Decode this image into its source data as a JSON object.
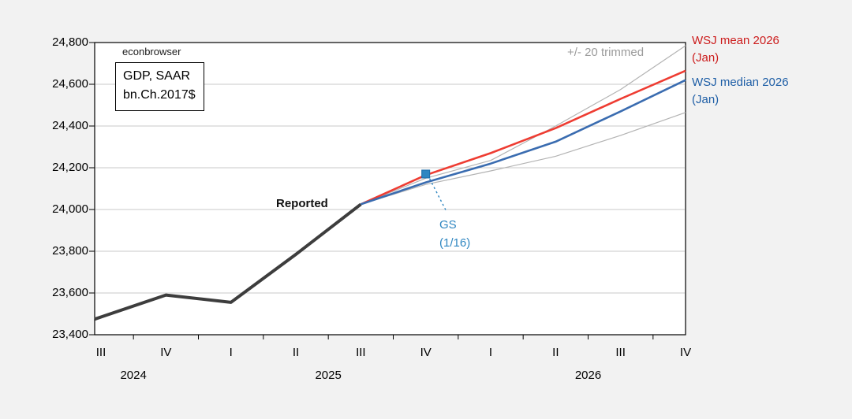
{
  "watermark": "econbrowser",
  "annotation_box": {
    "line1": "GDP, SAAR",
    "line2": "bn.Ch.2017$"
  },
  "labels": {
    "reported": "Reported",
    "trimmed": "+/- 20 trimmed",
    "wsj_mean_l1": "WSJ mean 2026",
    "wsj_mean_l2": "(Jan)",
    "wsj_median_l1": "WSJ median 2026",
    "wsj_median_l2": "(Jan)",
    "gs_l1": "GS",
    "gs_l2": "(1/16)"
  },
  "colors": {
    "page_background": "#f2f2f2",
    "plot_background": "#ffffff",
    "frame": "#000000",
    "gridline": "#cacaca",
    "reported_line": "#3d3d3d",
    "mean_line": "#ee3c32",
    "mean_label": "#cc1c1c",
    "median_line": "#3a6cb0",
    "median_label": "#1e5ea6",
    "trimmed_line": "#b3b3b3",
    "trimmed_label": "#9b9b9b",
    "gs_accent": "#2e86c1"
  },
  "chart_data": {
    "type": "line",
    "title": "",
    "xlabel": "",
    "ylabel": "GDP, SAAR bn.Ch.2017$",
    "grid": "horizontal",
    "ylim": [
      23400,
      24800
    ],
    "y_step": 200,
    "y_tick_labels": [
      "23,400",
      "23,600",
      "23,800",
      "24,000",
      "24,200",
      "24,400",
      "24,600",
      "24,800"
    ],
    "categories": [
      "2024 Q3",
      "2024 Q4",
      "2025 Q1",
      "2025 Q2",
      "2025 Q3",
      "2025 Q4",
      "2026 Q1",
      "2026 Q2",
      "2026 Q3",
      "2026 Q4"
    ],
    "x_tick_labels": [
      "III",
      "IV",
      "I",
      "II",
      "III",
      "IV",
      "I",
      "II",
      "III",
      "IV"
    ],
    "year_labels": [
      {
        "label": "2024",
        "pos": 0.5
      },
      {
        "label": "2025",
        "pos": 3.5
      },
      {
        "label": "2026",
        "pos": 7.5
      }
    ],
    "series": [
      {
        "key": "trimmed_upper",
        "name": "+20 trimmed",
        "color": "#b3b3b3",
        "width": 1.2,
        "values": [
          null,
          null,
          null,
          null,
          24025,
          24150,
          24235,
          24400,
          24575,
          24785
        ]
      },
      {
        "key": "trimmed_lower",
        "name": "-20 trimmed",
        "color": "#b3b3b3",
        "width": 1.2,
        "values": [
          null,
          null,
          null,
          null,
          24025,
          24120,
          24185,
          24255,
          24355,
          24465
        ]
      },
      {
        "key": "wsj_mean",
        "name": "WSJ mean 2026 (Jan)",
        "color": "#ee3c32",
        "width": 2.6,
        "values": [
          null,
          null,
          null,
          null,
          24025,
          24165,
          24270,
          24390,
          24530,
          24665
        ]
      },
      {
        "key": "wsj_median",
        "name": "WSJ median 2026 (Jan)",
        "color": "#3a6cb0",
        "width": 2.6,
        "values": [
          null,
          null,
          null,
          null,
          24025,
          24130,
          24220,
          24325,
          24470,
          24620
        ]
      },
      {
        "key": "reported",
        "name": "Reported",
        "color": "#3d3d3d",
        "width": 4,
        "extend_to_left_edge": true,
        "values": [
          23485,
          23590,
          23555,
          23785,
          24025,
          null,
          null,
          null,
          null,
          null
        ]
      }
    ],
    "point": {
      "name": "GS (1/16)",
      "x_index": 5,
      "value": 24170,
      "color": "#2e86c1"
    }
  }
}
